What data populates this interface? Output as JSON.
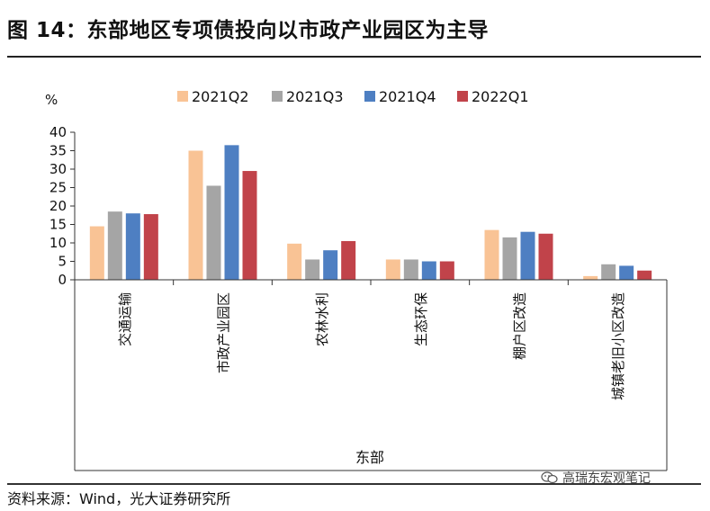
{
  "figure": {
    "title": "图 14：东部地区专项债投向以市政产业园区为主导",
    "source": "资料来源：Wind，光大证券研究所",
    "watermark": "高瑞东宏观笔记",
    "watermark_icon": "wechat-icon"
  },
  "chart_data": {
    "type": "bar",
    "title": "",
    "ylabel": "%",
    "xlabel": "东部",
    "ylim": [
      0,
      40
    ],
    "yticks": [
      0,
      5,
      10,
      15,
      20,
      25,
      30,
      35,
      40
    ],
    "grid": false,
    "legend_position": "top",
    "categories": [
      "交通运输",
      "市政产业园区",
      "农林水利",
      "生态环保",
      "棚户区改造",
      "城镇老旧小区改造"
    ],
    "series": [
      {
        "name": "2021Q2",
        "color": "#F9C395",
        "values": [
          14.5,
          35,
          9.8,
          5.5,
          13.5,
          1.0
        ]
      },
      {
        "name": "2021Q3",
        "color": "#A5A5A5",
        "values": [
          18.5,
          25.5,
          5.5,
          5.5,
          11.5,
          4.2
        ]
      },
      {
        "name": "2021Q4",
        "color": "#4E7FC2",
        "values": [
          18.0,
          36.5,
          8.0,
          5.0,
          13.0,
          3.8
        ]
      },
      {
        "name": "2022Q1",
        "color": "#C1434A",
        "values": [
          17.8,
          29.5,
          10.5,
          5.0,
          12.5,
          2.5
        ]
      }
    ]
  }
}
